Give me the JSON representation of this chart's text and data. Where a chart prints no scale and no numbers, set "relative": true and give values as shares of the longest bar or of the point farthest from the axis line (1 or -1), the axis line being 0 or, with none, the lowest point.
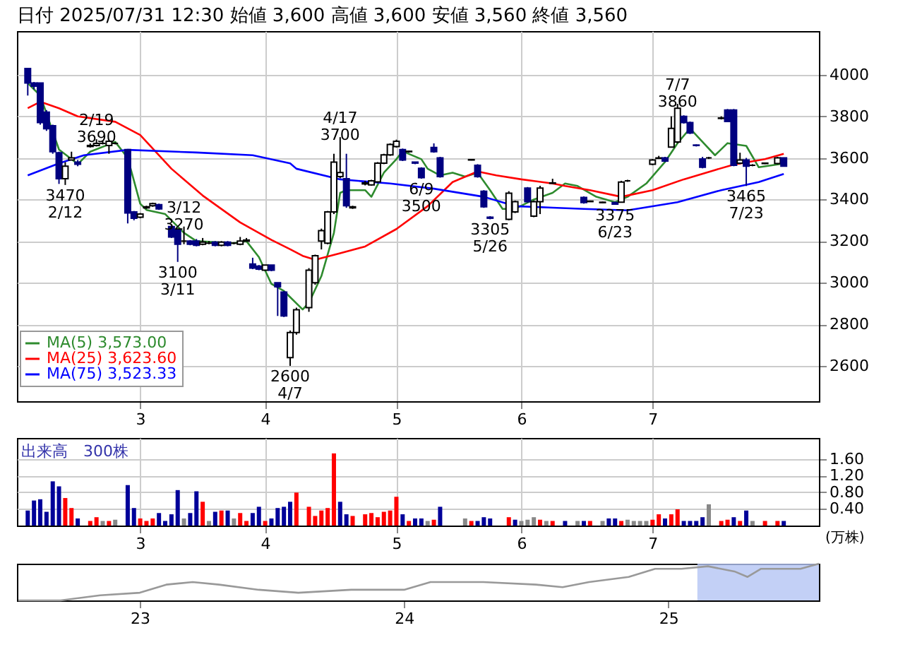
{
  "chart_data": [
    {
      "type": "candlestick",
      "title": "日付 2025/07/31 12:30 始値 3,600 高値 3,600 安値 3,560 終値 3,560",
      "categories": [
        null,
        null,
        null,
        null,
        null,
        null,
        null,
        null,
        null,
        null,
        null,
        null,
        null,
        null,
        null,
        null,
        null,
        null,
        "3",
        null,
        null,
        null,
        null,
        null,
        null,
        null,
        null,
        null,
        null,
        null,
        null,
        null,
        null,
        null,
        null,
        null,
        null,
        null,
        "4",
        null,
        null,
        null,
        null,
        null,
        null,
        null,
        null,
        null,
        null,
        null,
        null,
        null,
        null,
        null,
        null,
        null,
        null,
        null,
        null,
        "5",
        null,
        null,
        null,
        null,
        null,
        null,
        null,
        null,
        null,
        null,
        null,
        null,
        null,
        null,
        null,
        null,
        null,
        null,
        null,
        "6",
        null,
        null,
        null,
        null,
        null,
        null,
        null,
        null,
        null,
        null,
        null,
        null,
        null,
        null,
        null,
        null,
        null,
        null,
        null,
        null,
        "7",
        null,
        null,
        null,
        null,
        null,
        null,
        null,
        null,
        null,
        null,
        null,
        null,
        null,
        null,
        null,
        null,
        null,
        null,
        null,
        null,
        null,
        null,
        null,
        null,
        null
      ],
      "ohlc": [
        [
          4030,
          4030,
          3900,
          3960
        ],
        [
          3960,
          3965,
          3930,
          3945
        ],
        [
          3960,
          3960,
          3760,
          3770
        ],
        [
          3820,
          3830,
          3730,
          3740
        ],
        [
          3755,
          3760,
          3620,
          3630
        ],
        [
          3625,
          3630,
          3475,
          3500
        ],
        [
          3500,
          3580,
          3470,
          3560
        ],
        [
          3590,
          3630,
          3590,
          3600
        ],
        [
          3580,
          3590,
          3560,
          3570
        ],
        null,
        [
          3655,
          3670,
          3650,
          3660
        ],
        [
          3660,
          3690,
          3655,
          3670
        ],
        [
          3670,
          3680,
          3665,
          3670
        ],
        [
          3660,
          3685,
          3620,
          3680
        ],
        [
          3670,
          3675,
          3665,
          3670
        ],
        null,
        [
          3640,
          3640,
          3285,
          3335
        ],
        [
          3340,
          3345,
          3300,
          3310
        ],
        [
          3315,
          3335,
          3310,
          3330
        ],
        [
          3360,
          3370,
          3355,
          3365
        ],
        [
          3370,
          3385,
          3365,
          3380
        ],
        [
          3375,
          3380,
          3350,
          3355
        ],
        null,
        [
          3270,
          3275,
          3215,
          3220
        ],
        [
          3255,
          3260,
          3100,
          3185
        ],
        [
          3200,
          3270,
          3185,
          3200
        ],
        [
          3200,
          3205,
          3180,
          3185
        ],
        [
          3200,
          3210,
          3175,
          3180
        ],
        [
          3185,
          3215,
          3180,
          3195
        ],
        [
          3190,
          3200,
          3185,
          3190
        ],
        [
          3195,
          3200,
          3175,
          3180
        ],
        [
          3180,
          3200,
          3175,
          3195
        ],
        [
          3195,
          3200,
          3175,
          3180
        ],
        [
          3190,
          3195,
          3185,
          3190
        ],
        [
          3185,
          3220,
          3180,
          3200
        ],
        [
          3200,
          3215,
          3200,
          3205
        ],
        [
          3090,
          3120,
          3065,
          3070
        ],
        [
          3080,
          3085,
          3060,
          3065
        ],
        [
          3060,
          3085,
          3060,
          3085
        ],
        [
          3085,
          3085,
          3055,
          3060
        ],
        [
          3000,
          3000,
          2840,
          2980
        ],
        [
          2955,
          2960,
          2835,
          2840
        ],
        [
          2640,
          2770,
          2600,
          2760
        ],
        [
          2760,
          2880,
          2750,
          2870
        ],
        null,
        [
          2880,
          3070,
          2860,
          3060
        ],
        [
          3000,
          3135,
          2990,
          3130
        ],
        [
          3200,
          3260,
          3160,
          3250
        ],
        [
          3190,
          3345,
          3185,
          3340
        ],
        [
          3340,
          3620,
          3330,
          3580
        ],
        [
          3510,
          3700,
          3502,
          3530
        ],
        [
          3500,
          3620,
          3360,
          3370
        ],
        [
          3360,
          3370,
          3355,
          3365
        ],
        null,
        [
          3475,
          3490,
          3468,
          3480
        ],
        [
          3470,
          3495,
          3467,
          3490
        ],
        [
          3485,
          3580,
          3480,
          3575
        ],
        [
          3575,
          3620,
          3570,
          3615
        ],
        [
          3615,
          3670,
          3610,
          3665
        ],
        [
          3655,
          3688,
          3650,
          3680
        ],
        [
          3640,
          3645,
          3585,
          3590
        ],
        [
          3630,
          3635,
          3625,
          3632
        ],
        [
          3580,
          3580,
          3570,
          3575
        ],
        [
          3550,
          3555,
          3500,
          3505
        ],
        null,
        [
          3650,
          3670,
          3625,
          3630
        ],
        [
          3600,
          3605,
          3505,
          3510
        ],
        null,
        null,
        null,
        null,
        [
          3590,
          3595,
          3588,
          3592
        ],
        [
          3565,
          3570,
          3505,
          3510
        ],
        [
          3440,
          3445,
          3360,
          3365
        ],
        [
          3315,
          3320,
          3305,
          3310
        ],
        null,
        null,
        [
          3305,
          3440,
          3300,
          3430
        ],
        [
          3340,
          3395,
          3335,
          3390
        ],
        null,
        [
          3455,
          3460,
          3385,
          3390
        ],
        [
          3320,
          3395,
          3315,
          3390
        ],
        [
          3390,
          3466,
          3330,
          3455
        ],
        null,
        [
          3478,
          3500,
          3475,
          3480
        ],
        null,
        null,
        null,
        null,
        [
          3410,
          3415,
          3380,
          3385
        ],
        [
          3390,
          3395,
          3388,
          3392
        ],
        null,
        [
          3385,
          3390,
          3383,
          3387
        ],
        null,
        [
          3385,
          3390,
          3375,
          3378
        ],
        [
          3387,
          3490,
          3385,
          3484
        ],
        [
          3490,
          3495,
          3485,
          3490
        ],
        null,
        null,
        null,
        [
          3570,
          3595,
          3565,
          3590
        ],
        [
          3598,
          3610,
          3595,
          3600
        ],
        [
          3600,
          3605,
          3580,
          3585
        ],
        [
          3652,
          3800,
          3650,
          3742
        ],
        [
          3677,
          3860,
          3670,
          3839
        ],
        [
          3800,
          3805,
          3765,
          3770
        ],
        [
          3770,
          3775,
          3715,
          3720
        ],
        [
          3662,
          3665,
          3655,
          3660
        ],
        [
          3595,
          3605,
          3550,
          3555
        ],
        [
          3600,
          3605,
          3595,
          3600
        ],
        null,
        [
          3790,
          3800,
          3785,
          3792
        ],
        [
          3830,
          3835,
          3775,
          3775
        ],
        [
          3830,
          3835,
          3560,
          3565
        ],
        [
          3575,
          3625,
          3570,
          3590
        ],
        [
          3590,
          3600,
          3465,
          3560
        ],
        [
          3565,
          3570,
          3560,
          3565
        ],
        null,
        [
          3573,
          3578,
          3570,
          3575
        ],
        null,
        [
          3573,
          3605,
          3570,
          3600
        ],
        [
          3600,
          3600,
          3560,
          3560
        ],
        null,
        null,
        null,
        null
      ],
      "series": [
        {
          "name": "MA(5) 3,573.00",
          "type": "line",
          "color": "#2e8b2e",
          "values": [
            3960,
            null,
            3900,
            null,
            null,
            3640,
            null,
            3594,
            3570,
            null,
            3630,
            null,
            null,
            null,
            3677,
            null,
            3600,
            null,
            3380,
            3350,
            null,
            null,
            3330,
            null,
            null,
            3240,
            null,
            3200,
            null,
            null,
            null,
            null,
            null,
            3190,
            null,
            3200,
            null,
            3123,
            null,
            2994,
            null,
            2960,
            null,
            null,
            2871,
            2903,
            null,
            3032,
            null,
            3239,
            3432,
            3445,
            null,
            null,
            3445,
            3413,
            null,
            3529,
            null,
            3594,
            3632,
            null,
            null,
            3594,
            3548,
            null,
            3516,
            null,
            3529,
            null,
            3510,
            null,
            3529,
            null,
            3445,
            null,
            3355,
            null,
            3355,
            null,
            null,
            3400,
            null,
            null,
            3432,
            null,
            3477,
            null,
            3465,
            null,
            null,
            3413,
            null,
            null,
            3387,
            null,
            3413,
            null,
            null,
            3477,
            null,
            null,
            3581,
            null,
            3671,
            null,
            3742,
            null,
            3677,
            null,
            3613,
            null,
            3671,
            null,
            null,
            3658,
            null,
            3555,
            null,
            null,
            null,
            3573,
            null,
            null,
            null,
            null
          ]
        },
        {
          "name": "MA(25) 3,623.60",
          "type": "line",
          "color": "#ff0000",
          "values": [
            3839,
            null,
            3870,
            null,
            null,
            3839,
            null,
            null,
            3800,
            null,
            null,
            null,
            null,
            null,
            3774,
            null,
            null,
            null,
            3710,
            null,
            null,
            null,
            null,
            3548,
            null,
            null,
            null,
            null,
            3419,
            null,
            null,
            null,
            null,
            null,
            3290,
            null,
            null,
            null,
            null,
            3206,
            null,
            null,
            3161,
            null,
            3129,
            null,
            3110,
            null,
            null,
            null,
            3142,
            null,
            null,
            null,
            3174,
            null,
            null,
            null,
            null,
            3258,
            null,
            null,
            null,
            null,
            3368,
            null,
            null,
            null,
            3484,
            null,
            null,
            null,
            3535,
            null,
            null,
            3516,
            null,
            null,
            null,
            3497,
            null,
            null,
            null,
            null,
            3477,
            null,
            3465,
            null,
            null,
            null,
            3445,
            null,
            null,
            null,
            null,
            3413,
            null,
            null,
            null,
            null,
            3445,
            null,
            null,
            null,
            null,
            3497,
            null,
            null,
            null,
            null,
            3542,
            null,
            null,
            3568,
            null,
            null,
            null,
            null,
            3594,
            null,
            null,
            3620,
            null,
            null,
            null,
            null
          ]
        },
        {
          "name": "MA(75) 3,523.33",
          "type": "line",
          "color": "#0000ff",
          "values": [
            3516,
            null,
            null,
            null,
            null,
            3574,
            null,
            null,
            null,
            3613,
            null,
            null,
            null,
            null,
            null,
            null,
            3639,
            null,
            null,
            null,
            null,
            null,
            null,
            null,
            null,
            null,
            null,
            3626,
            null,
            null,
            null,
            null,
            null,
            null,
            null,
            null,
            3613,
            null,
            null,
            null,
            null,
            null,
            3574,
            3548,
            null,
            null,
            null,
            null,
            null,
            null,
            3497,
            null,
            null,
            null,
            null,
            null,
            null,
            null,
            3477,
            null,
            null,
            null,
            null,
            null,
            null,
            3452,
            null,
            null,
            null,
            null,
            null,
            null,
            null,
            3413,
            null,
            null,
            null,
            null,
            3368,
            null,
            null,
            null,
            null,
            null,
            3361,
            null,
            null,
            null,
            null,
            3355,
            null,
            null,
            null,
            null,
            null,
            null,
            3348,
            null,
            null,
            null,
            null,
            null,
            null,
            null,
            3387,
            null,
            null,
            null,
            null,
            null,
            null,
            3445,
            null,
            null,
            null,
            null,
            null,
            3484,
            null,
            null,
            null,
            3523,
            null,
            null,
            null,
            null
          ]
        }
      ],
      "ylim": [
        2430,
        4210
      ],
      "yticks": [
        2600,
        2800,
        3000,
        3200,
        3400,
        3600,
        3800,
        4000
      ],
      "grid": true,
      "legend": "bottom left",
      "annotations": [
        {
          "text": "2/19\n3690",
          "y": 3690
        },
        {
          "text": "3470\n2/12",
          "y": 3470
        },
        {
          "text": "3/12\n3270",
          "y": 3270
        },
        {
          "text": "3100\n3/11",
          "y": 3100
        },
        {
          "text": "2600\n4/7",
          "y": 2600
        },
        {
          "text": "4/17\n3700",
          "y": 3700
        },
        {
          "text": "3305\n5/26",
          "y": 3305
        },
        {
          "text": "6/9\n3500",
          "y": 3500
        },
        {
          "text": "3375\n6/23",
          "y": 3375
        },
        {
          "text": "7/7\n3860",
          "y": 3860
        },
        {
          "text": "3465\n7/23",
          "y": 3465
        }
      ]
    },
    {
      "type": "bar",
      "title": "出来高　300株",
      "ylabel": "(万株)",
      "categories": [
        null,
        null,
        null,
        null,
        null,
        null,
        null,
        null,
        null,
        null,
        null,
        null,
        null,
        null,
        null,
        null,
        null,
        null,
        "3",
        null,
        null,
        null,
        null,
        null,
        null,
        null,
        null,
        null,
        null,
        null,
        null,
        null,
        null,
        null,
        null,
        null,
        null,
        null,
        "4",
        null,
        null,
        null,
        null,
        null,
        null,
        null,
        null,
        null,
        null,
        null,
        null,
        null,
        null,
        null,
        null,
        null,
        null,
        null,
        null,
        "5",
        null,
        null,
        null,
        null,
        null,
        null,
        null,
        null,
        null,
        null,
        null,
        null,
        null,
        null,
        null,
        null,
        null,
        null,
        null,
        "6",
        null,
        null,
        null,
        null,
        null,
        null,
        null,
        null,
        null,
        null,
        null,
        null,
        null,
        null,
        null,
        null,
        null,
        null,
        null,
        null,
        "7",
        null,
        null,
        null,
        null,
        null,
        null,
        null,
        null,
        null,
        null,
        null,
        null,
        null,
        null,
        null,
        null,
        null,
        null,
        null,
        null,
        null,
        null,
        null,
        null,
        null
      ],
      "values": [
        0.36,
        0.6,
        0.63,
        0.33,
        1.06,
        0.94,
        0.66,
        0.42,
        0.17,
        null,
        0.11,
        0.2,
        0.11,
        0.11,
        0.14,
        null,
        0.97,
        0.42,
        0.17,
        0.11,
        0.17,
        0.3,
        0.11,
        0.27,
        0.85,
        0.17,
        0.3,
        0.82,
        0.57,
        0.11,
        0.33,
        0.36,
        0.36,
        0.17,
        0.3,
        0.11,
        0.3,
        0.45,
        0.11,
        0.17,
        0.42,
        0.45,
        0.57,
        0.79,
        null,
        0.45,
        0.23,
        0.36,
        0.42,
        1.73,
        0.57,
        0.27,
        0.23,
        null,
        0.27,
        0.3,
        0.2,
        0.33,
        0.36,
        0.69,
        0.27,
        0.11,
        0.17,
        0.17,
        0.11,
        0.14,
        0.45,
        null,
        null,
        null,
        0.17,
        0.11,
        0.11,
        0.2,
        0.17,
        null,
        null,
        0.2,
        0.14,
        0.11,
        0.14,
        0.2,
        0.14,
        0.11,
        0.11,
        null,
        0.11,
        null,
        0.11,
        0.11,
        0.11,
        null,
        0.11,
        0.17,
        0.17,
        0.11,
        0.14,
        0.11,
        0.11,
        0.11,
        0.14,
        0.27,
        0.17,
        0.27,
        0.39,
        0.11,
        0.11,
        0.11,
        0.2,
        0.51,
        null,
        0.11,
        0.14,
        0.2,
        0.11,
        0.36,
        0.11,
        null,
        0.11,
        null,
        0.11,
        0.11,
        null,
        null,
        null,
        null
      ],
      "colors": [
        "#000099",
        "#000099",
        "#000099",
        "#000099",
        "#000099",
        "#000099",
        "#ff0000",
        "#ff0000",
        "#000099",
        null,
        "#ff0000",
        "#ff0000",
        "#888888",
        "#ff0000",
        "#888888",
        null,
        "#000099",
        "#000099",
        "#ff0000",
        "#ff0000",
        "#ff0000",
        "#000099",
        "#000099",
        "#000099",
        "#000099",
        "#888888",
        "#000099",
        "#000099",
        "#ff0000",
        "#888888",
        "#000099",
        "#ff0000",
        "#000099",
        "#888888",
        "#ff0000",
        "#ff0000",
        "#000099",
        "#000099",
        "#ff0000",
        "#000099",
        "#000099",
        "#000099",
        "#000099",
        "#ff0000",
        null,
        "#ff0000",
        "#ff0000",
        "#ff0000",
        "#ff0000",
        "#ff0000",
        "#000099",
        "#000099",
        "#ff0000",
        null,
        "#ff0000",
        "#ff0000",
        "#ff0000",
        "#ff0000",
        "#ff0000",
        "#ff0000",
        "#000099",
        "#ff0000",
        "#000099",
        "#000099",
        "#888888",
        "#ff0000",
        "#000099",
        null,
        null,
        null,
        "#888888",
        "#ff0000",
        "#000099",
        "#000099",
        "#000099",
        null,
        null,
        "#ff0000",
        "#000099",
        "#888888",
        "#888888",
        "#888888",
        "#ff0000",
        "#888888",
        "#ff0000",
        null,
        "#000099",
        null,
        "#888888",
        "#000099",
        "#ff0000",
        null,
        "#888888",
        "#000099",
        "#000099",
        "#ff0000",
        "#888888",
        "#888888",
        "#888888",
        "#888888",
        "#ff0000",
        "#ff0000",
        "#000099",
        "#ff0000",
        "#ff0000",
        "#000099",
        "#000099",
        "#000099",
        "#000099",
        "#888888",
        null,
        "#ff0000",
        "#ff0000",
        "#000099",
        "#ff0000",
        "#000099",
        "#888888",
        null,
        "#ff0000",
        null,
        "#ff0000",
        "#000099",
        null,
        null,
        null,
        null
      ],
      "ylim": [
        0,
        2.1
      ],
      "yticks": [
        {
          "value": 0.4,
          "label": "0.40"
        },
        {
          "value": 0.8,
          "label": "0.80"
        },
        {
          "value": 1.2,
          "label": "1.20"
        },
        {
          "value": 1.6,
          "label": "1.60"
        }
      ],
      "grid": true
    },
    {
      "type": "line",
      "relative": true,
      "tick_labels": "x",
      "series": [
        {
          "color": "#999999",
          "x": [
            2022.54,
            2022.7,
            2022.85,
            2023.0,
            2023.1,
            2023.2,
            2023.3,
            2023.45,
            2023.6,
            2023.8,
            2024.0,
            2024.1,
            2024.3,
            2024.5,
            2024.6,
            2024.7,
            2024.85,
            2024.95,
            2025.05,
            2025.15,
            2025.25,
            2025.3,
            2025.35,
            2025.5,
            2025.57
          ],
          "values": [
            0,
            0,
            0.14,
            0.21,
            0.43,
            0.5,
            0.43,
            0.29,
            0.21,
            0.29,
            0.29,
            0.5,
            0.5,
            0.43,
            0.36,
            0.5,
            0.64,
            0.86,
            0.86,
            0.93,
            0.79,
            0.64,
            0.86,
            0.86,
            1
          ]
        }
      ],
      "xlim": [
        2022.535,
        2025.57
      ],
      "xticks": [
        {
          "value": 2023,
          "label": "23"
        },
        {
          "value": 2024,
          "label": "24"
        },
        {
          "value": 2025,
          "label": "25"
        }
      ],
      "bands": [
        {
          "axis": "x",
          "from": 2025.11,
          "to": 2025.57,
          "color": "#b4c4f4"
        }
      ]
    }
  ]
}
